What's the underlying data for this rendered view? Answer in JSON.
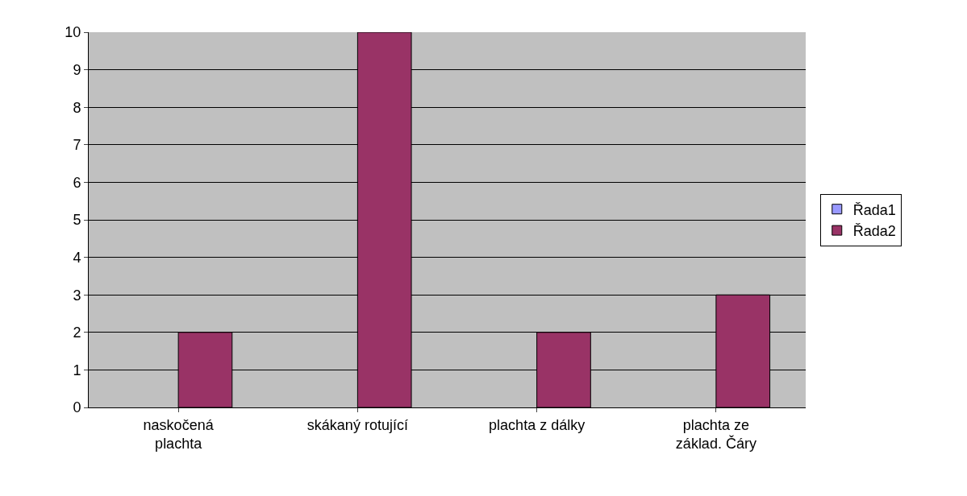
{
  "chart_data": {
    "type": "bar",
    "categories": [
      "naskočená plachta",
      "skákaný rotující",
      "plachta z dálky",
      "plachta ze základ. Čáry"
    ],
    "series": [
      {
        "name": "Řada1",
        "color": "#9999ff",
        "values": [
          null,
          null,
          null,
          null
        ]
      },
      {
        "name": "Řada2",
        "color": "#993366",
        "values": [
          2,
          10,
          2,
          3
        ]
      }
    ],
    "ylim": [
      0,
      10
    ],
    "yticks": [
      0,
      1,
      2,
      3,
      4,
      5,
      6,
      7,
      8,
      9,
      10
    ],
    "grid": "y",
    "legend": "right"
  }
}
